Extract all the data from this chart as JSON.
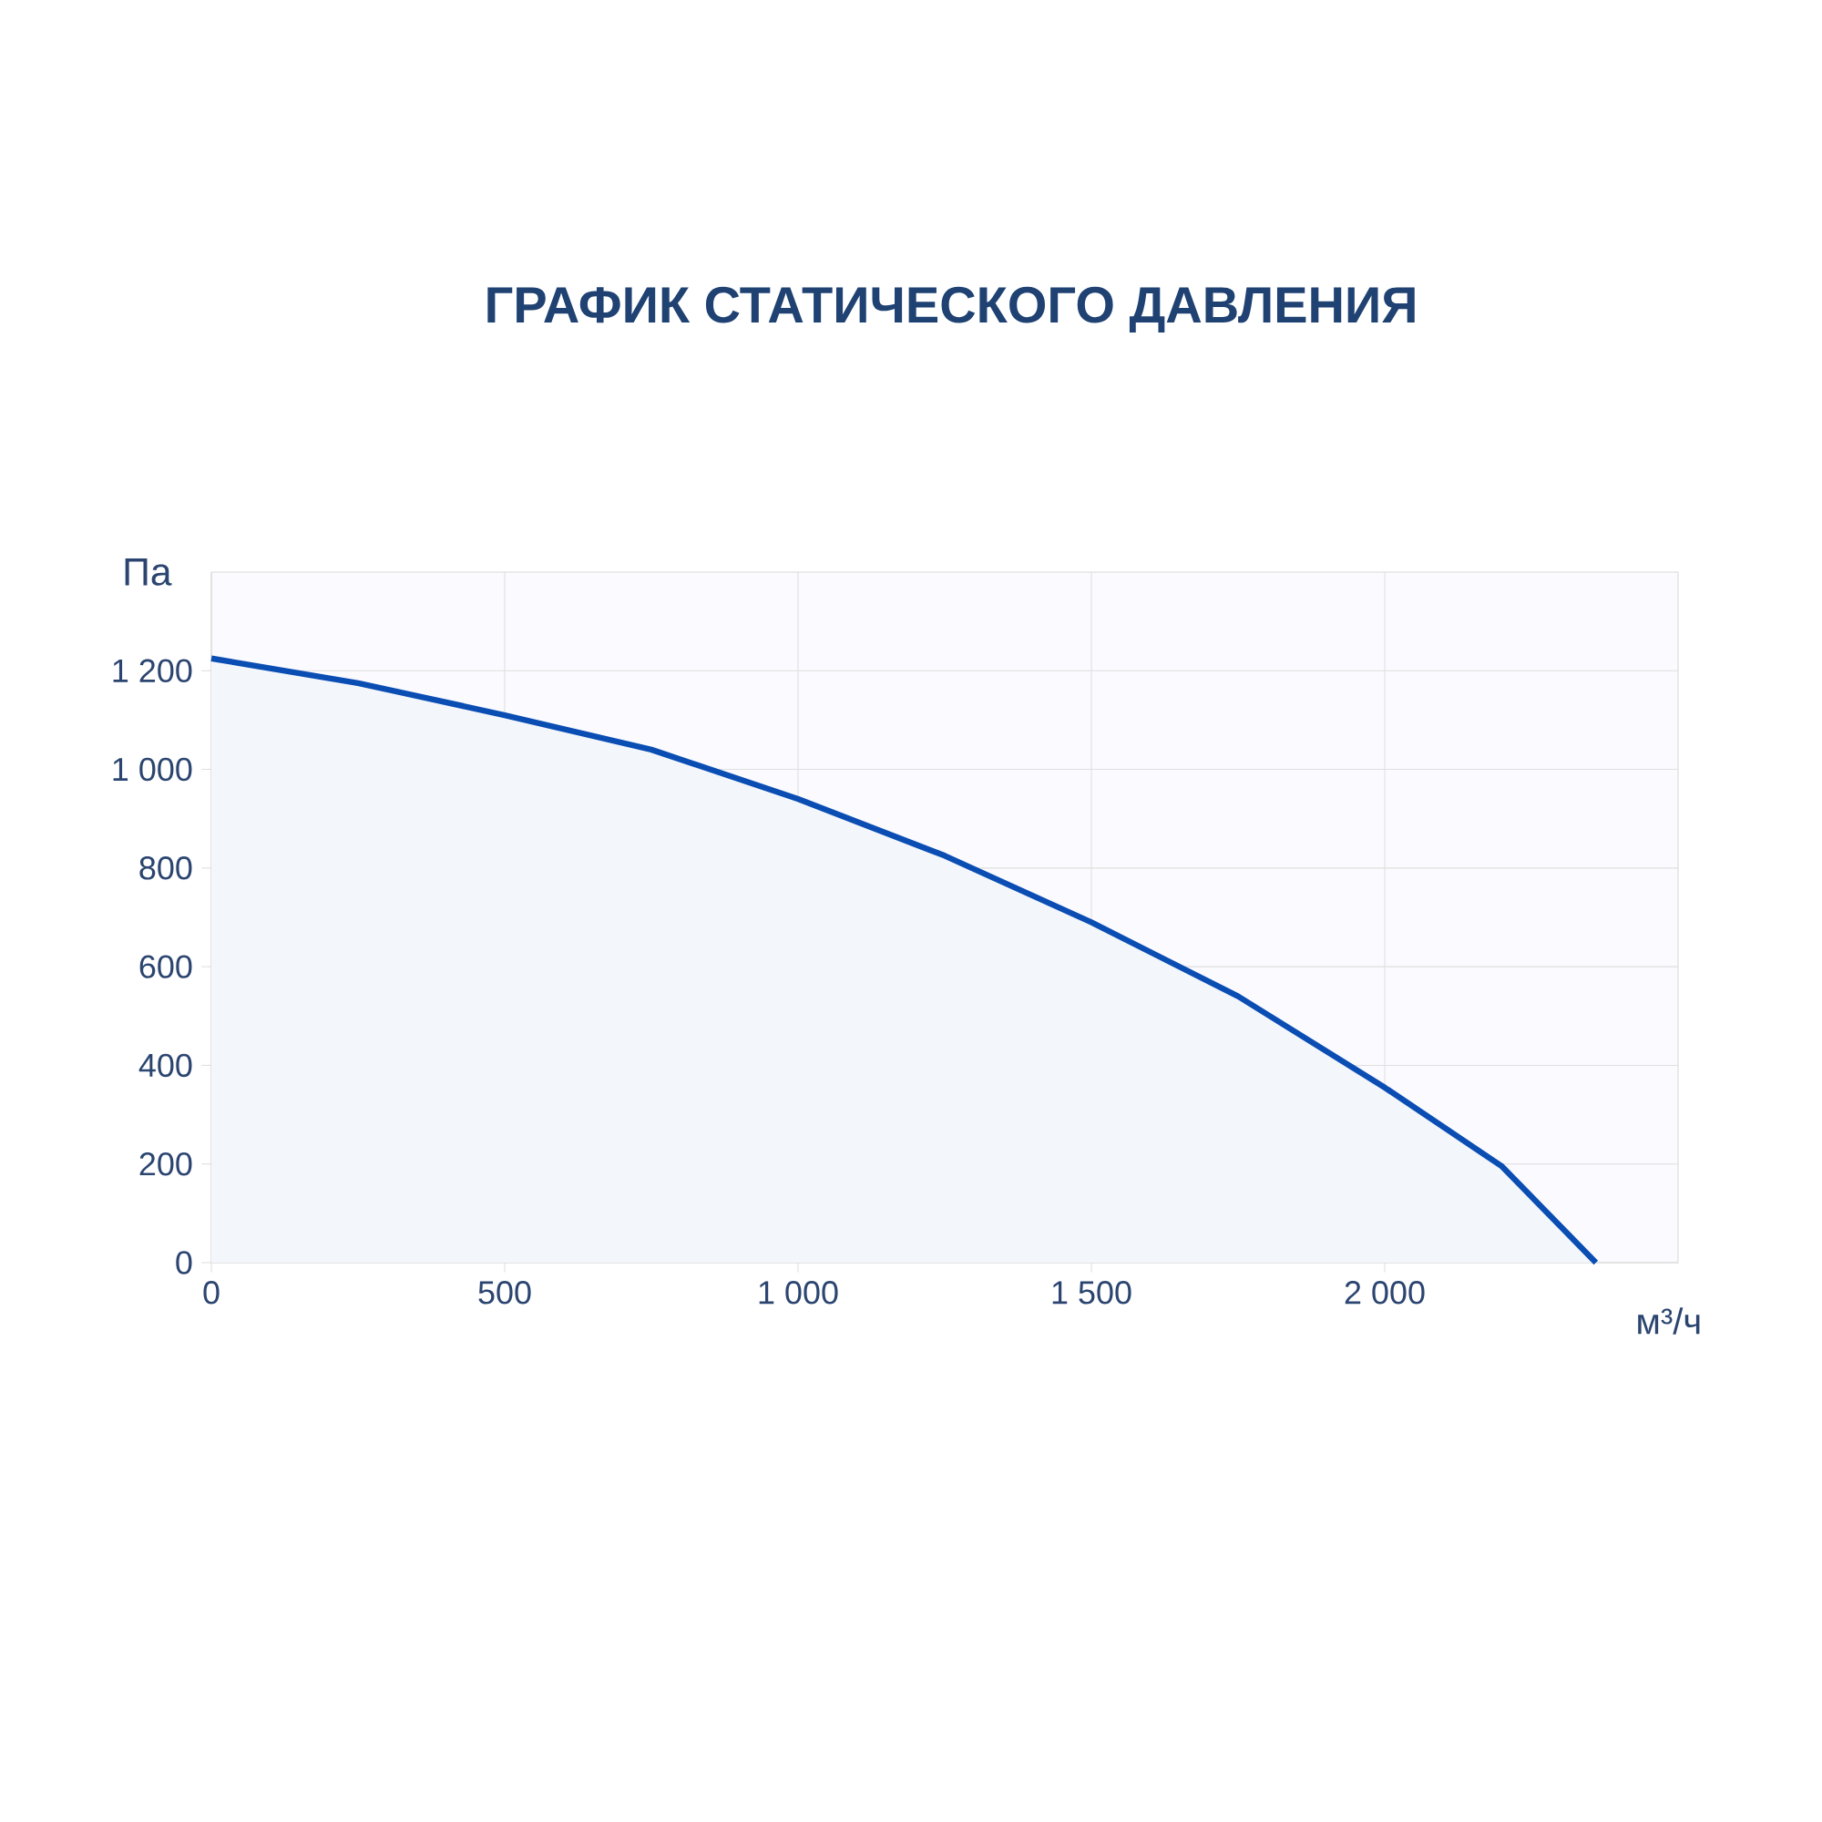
{
  "chart_data": {
    "type": "area",
    "title": "ГРАФИК СТАТИЧЕСКОГО ДАВЛЕНИЯ",
    "xlabel": "м³/ч",
    "ylabel": "Па",
    "x": [
      0,
      250,
      500,
      750,
      1000,
      1250,
      1500,
      1750,
      2000,
      2200,
      2360
    ],
    "values": [
      1225,
      1175,
      1110,
      1040,
      940,
      825,
      690,
      540,
      355,
      195,
      0
    ],
    "color": "#0a4db3",
    "xlim": [
      0,
      2500
    ],
    "ylim": [
      0,
      1400
    ],
    "xticks": [
      0,
      500,
      {
        "value": 1000,
        "label": "1 000"
      },
      {
        "value": 1500,
        "label": "1 500"
      },
      {
        "value": 2000,
        "label": "2 000"
      }
    ],
    "yticks": [
      0,
      200,
      400,
      600,
      800,
      {
        "value": 1000,
        "label": "1 000"
      },
      {
        "value": 1200,
        "label": "1 200"
      }
    ],
    "grid": true,
    "marker": "none",
    "line_style": "solid"
  }
}
